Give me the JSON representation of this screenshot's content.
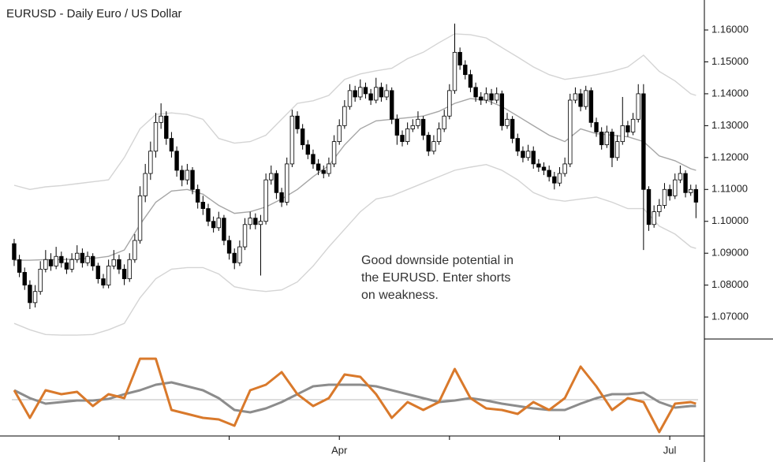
{
  "chart_data": [
    {
      "type": "candlestick",
      "title": "EURUSD - Daily  Euro / US Dollar",
      "annotation": [
        "Good downside potential in",
        "the EURUSD. Enter shorts",
        "on weakness."
      ],
      "xlim": [
        -2.7,
        131.6
      ],
      "ylim": [
        1.0631,
        1.1694
      ],
      "yticks": [
        {
          "value": 1.07,
          "label": "1.07000"
        },
        {
          "value": 1.08,
          "label": "1.08000"
        },
        {
          "value": 1.09,
          "label": "1.09000"
        },
        {
          "value": 1.1,
          "label": "1.10000"
        },
        {
          "value": 1.11,
          "label": "1.11000"
        },
        {
          "value": 1.12,
          "label": "1.12000"
        },
        {
          "value": 1.13,
          "label": "1.13000"
        },
        {
          "value": 1.14,
          "label": "1.14000"
        },
        {
          "value": 1.15,
          "label": "1.15000"
        },
        {
          "value": 1.16,
          "label": "1.16000"
        }
      ],
      "xticks": [
        {
          "value": 20,
          "label": null
        },
        {
          "value": 41,
          "label": null
        },
        {
          "value": 62,
          "label": "Apr"
        },
        {
          "value": 83,
          "label": null
        },
        {
          "value": 104,
          "label": null
        },
        {
          "value": 125,
          "label": "Jul"
        }
      ],
      "up_color": "#ffffff",
      "down_color": "#000000",
      "ohlc": [
        [
          1.093,
          1.0945,
          1.086,
          1.088
        ],
        [
          1.088,
          1.0895,
          1.0825,
          1.084
        ],
        [
          1.084,
          1.0855,
          1.0785,
          1.08
        ],
        [
          1.08,
          1.0815,
          1.0725,
          1.0745
        ],
        [
          1.0745,
          1.08,
          1.073,
          1.078
        ],
        [
          1.078,
          1.0875,
          1.077,
          1.085
        ],
        [
          1.085,
          1.091,
          1.084,
          1.088
        ],
        [
          1.088,
          1.09,
          1.0845,
          1.086
        ],
        [
          1.086,
          1.092,
          1.085,
          1.089
        ],
        [
          1.089,
          1.0905,
          1.0855,
          1.087
        ],
        [
          1.087,
          1.0885,
          1.0835,
          1.085
        ],
        [
          1.085,
          1.09,
          1.084,
          1.088
        ],
        [
          1.088,
          1.0925,
          1.087,
          1.09
        ],
        [
          1.09,
          1.0915,
          1.0855,
          1.087
        ],
        [
          1.087,
          1.0905,
          1.086,
          1.089
        ],
        [
          1.089,
          1.09,
          1.0845,
          1.086
        ],
        [
          1.086,
          1.087,
          1.0805,
          1.082
        ],
        [
          1.082,
          1.0835,
          1.079,
          1.08
        ],
        [
          1.08,
          1.088,
          1.079,
          1.086
        ],
        [
          1.086,
          1.091,
          1.085,
          1.088
        ],
        [
          1.088,
          1.0895,
          1.0835,
          1.085
        ],
        [
          1.085,
          1.0865,
          1.08,
          1.082
        ],
        [
          1.082,
          1.09,
          1.081,
          1.088
        ],
        [
          1.088,
          1.096,
          1.087,
          1.094
        ],
        [
          1.094,
          1.111,
          1.093,
          1.108
        ],
        [
          1.108,
          1.118,
          1.106,
          1.115
        ],
        [
          1.115,
          1.125,
          1.113,
          1.122
        ],
        [
          1.122,
          1.134,
          1.12,
          1.131
        ],
        [
          1.131,
          1.137,
          1.129,
          1.133
        ],
        [
          1.133,
          1.1345,
          1.124,
          1.126
        ],
        [
          1.126,
          1.128,
          1.12,
          1.122
        ],
        [
          1.122,
          1.1235,
          1.114,
          1.116
        ],
        [
          1.116,
          1.1175,
          1.111,
          1.113
        ],
        [
          1.113,
          1.118,
          1.1115,
          1.116
        ],
        [
          1.116,
          1.117,
          1.1085,
          1.11
        ],
        [
          1.11,
          1.1115,
          1.104,
          1.106
        ],
        [
          1.106,
          1.108,
          1.102,
          1.104
        ],
        [
          1.104,
          1.1055,
          1.0985,
          1.1
        ],
        [
          1.1,
          1.1015,
          1.0965,
          1.098
        ],
        [
          1.098,
          1.103,
          1.097,
          1.101
        ],
        [
          1.101,
          1.102,
          1.0925,
          1.094
        ],
        [
          1.094,
          1.0955,
          1.088,
          1.09
        ],
        [
          1.09,
          1.0915,
          1.085,
          1.087
        ],
        [
          1.087,
          1.094,
          1.086,
          1.092
        ],
        [
          1.092,
          1.101,
          1.091,
          1.099
        ],
        [
          1.099,
          1.103,
          1.0975,
          1.101
        ],
        [
          1.101,
          1.1025,
          1.0975,
          1.099
        ],
        [
          1.099,
          1.102,
          1.083,
          1.1
        ],
        [
          1.1,
          1.115,
          1.099,
          1.113
        ],
        [
          1.113,
          1.1175,
          1.1115,
          1.115
        ],
        [
          1.115,
          1.116,
          1.107,
          1.109
        ],
        [
          1.109,
          1.1105,
          1.1045,
          1.106
        ],
        [
          1.106,
          1.12,
          1.105,
          1.118
        ],
        [
          1.118,
          1.135,
          1.117,
          1.133
        ],
        [
          1.133,
          1.1345,
          1.1275,
          1.129
        ],
        [
          1.129,
          1.1305,
          1.1225,
          1.124
        ],
        [
          1.124,
          1.1255,
          1.1195,
          1.121
        ],
        [
          1.121,
          1.1225,
          1.1165,
          1.118
        ],
        [
          1.118,
          1.1195,
          1.1145,
          1.116
        ],
        [
          1.116,
          1.1175,
          1.1135,
          1.115
        ],
        [
          1.115,
          1.12,
          1.114,
          1.118
        ],
        [
          1.118,
          1.127,
          1.117,
          1.125
        ],
        [
          1.125,
          1.132,
          1.124,
          1.13
        ],
        [
          1.13,
          1.138,
          1.129,
          1.136
        ],
        [
          1.136,
          1.143,
          1.135,
          1.141
        ],
        [
          1.141,
          1.1425,
          1.1375,
          1.139
        ],
        [
          1.139,
          1.1445,
          1.138,
          1.142
        ],
        [
          1.142,
          1.1435,
          1.1385,
          1.14
        ],
        [
          1.14,
          1.1415,
          1.1365,
          1.138
        ],
        [
          1.138,
          1.145,
          1.137,
          1.142
        ],
        [
          1.142,
          1.1435,
          1.1375,
          1.139
        ],
        [
          1.139,
          1.143,
          1.138,
          1.141
        ],
        [
          1.141,
          1.142,
          1.1305,
          1.132
        ],
        [
          1.132,
          1.1335,
          1.124,
          1.127
        ],
        [
          1.127,
          1.1285,
          1.1235,
          1.125
        ],
        [
          1.125,
          1.131,
          1.124,
          1.129
        ],
        [
          1.129,
          1.132,
          1.128,
          1.13
        ],
        [
          1.13,
          1.1345,
          1.129,
          1.132
        ],
        [
          1.132,
          1.133,
          1.1255,
          1.127
        ],
        [
          1.127,
          1.128,
          1.1205,
          1.122
        ],
        [
          1.122,
          1.127,
          1.121,
          1.125
        ],
        [
          1.125,
          1.131,
          1.124,
          1.129
        ],
        [
          1.129,
          1.135,
          1.128,
          1.133
        ],
        [
          1.133,
          1.143,
          1.132,
          1.141
        ],
        [
          1.141,
          1.162,
          1.14,
          1.153
        ],
        [
          1.153,
          1.1545,
          1.1475,
          1.149
        ],
        [
          1.149,
          1.1505,
          1.1445,
          1.146
        ],
        [
          1.146,
          1.1475,
          1.1405,
          1.142
        ],
        [
          1.142,
          1.1435,
          1.1375,
          1.139
        ],
        [
          1.139,
          1.1405,
          1.1365,
          1.138
        ],
        [
          1.138,
          1.142,
          1.137,
          1.14
        ],
        [
          1.14,
          1.1415,
          1.1365,
          1.138
        ],
        [
          1.138,
          1.142,
          1.137,
          1.14
        ],
        [
          1.14,
          1.141,
          1.1285,
          1.13
        ],
        [
          1.13,
          1.134,
          1.129,
          1.132
        ],
        [
          1.132,
          1.133,
          1.1245,
          1.126
        ],
        [
          1.126,
          1.1275,
          1.1205,
          1.122
        ],
        [
          1.122,
          1.1235,
          1.1185,
          1.12
        ],
        [
          1.12,
          1.124,
          1.119,
          1.122
        ],
        [
          1.122,
          1.1235,
          1.1165,
          1.118
        ],
        [
          1.118,
          1.1195,
          1.1155,
          1.117
        ],
        [
          1.117,
          1.1185,
          1.1145,
          1.116
        ],
        [
          1.116,
          1.1175,
          1.1125,
          1.114
        ],
        [
          1.114,
          1.1155,
          1.11,
          1.112
        ],
        [
          1.112,
          1.117,
          1.111,
          1.115
        ],
        [
          1.115,
          1.12,
          1.114,
          1.118
        ],
        [
          1.118,
          1.14,
          1.117,
          1.138
        ],
        [
          1.138,
          1.142,
          1.137,
          1.14
        ],
        [
          1.14,
          1.1415,
          1.1345,
          1.136
        ],
        [
          1.136,
          1.1425,
          1.135,
          1.141
        ],
        [
          1.141,
          1.142,
          1.1295,
          1.131
        ],
        [
          1.131,
          1.1325,
          1.1265,
          1.128
        ],
        [
          1.128,
          1.1295,
          1.1225,
          1.124
        ],
        [
          1.124,
          1.13,
          1.123,
          1.128
        ],
        [
          1.128,
          1.129,
          1.117,
          1.12
        ],
        [
          1.12,
          1.127,
          1.119,
          1.125
        ],
        [
          1.125,
          1.139,
          1.124,
          1.13
        ],
        [
          1.13,
          1.1315,
          1.1265,
          1.128
        ],
        [
          1.128,
          1.134,
          1.127,
          1.132
        ],
        [
          1.132,
          1.143,
          1.131,
          1.14
        ],
        [
          1.14,
          1.143,
          1.091,
          1.11
        ],
        [
          1.11,
          1.111,
          1.097,
          1.099
        ],
        [
          1.099,
          1.105,
          1.098,
          1.103
        ],
        [
          1.103,
          1.107,
          1.1015,
          1.105
        ],
        [
          1.105,
          1.112,
          1.104,
          1.11
        ],
        [
          1.11,
          1.1115,
          1.1065,
          1.108
        ],
        [
          1.108,
          1.115,
          1.107,
          1.113
        ],
        [
          1.113,
          1.1175,
          1.112,
          1.115
        ],
        [
          1.115,
          1.116,
          1.1075,
          1.109
        ],
        [
          1.109,
          1.1115,
          1.108,
          1.11
        ],
        [
          1.11,
          1.1115,
          1.101,
          1.106
        ]
      ],
      "bands": {
        "x": [
          0,
          3,
          6,
          9,
          12,
          15,
          18,
          21,
          24,
          27,
          30,
          33,
          36,
          39,
          42,
          45,
          48,
          51,
          54,
          57,
          60,
          63,
          66,
          69,
          72,
          75,
          78,
          81,
          84,
          87,
          90,
          93,
          96,
          99,
          102,
          105,
          108,
          111,
          114,
          117,
          120,
          123,
          126,
          129,
          130
        ],
        "series": [
          {
            "color": "#d4d4d4",
            "values": [
              1.1113,
              1.11,
              1.1108,
              1.1112,
              1.1118,
              1.1124,
              1.113,
              1.12,
              1.129,
              1.1335,
              1.134,
              1.1335,
              1.132,
              1.126,
              1.1245,
              1.125,
              1.127,
              1.132,
              1.137,
              1.1378,
              1.1395,
              1.1445,
              1.1462,
              1.1472,
              1.148,
              1.151,
              1.153,
              1.156,
              1.1588,
              1.1585,
              1.1575,
              1.1545,
              1.1515,
              1.1484,
              1.146,
              1.1445,
              1.1452,
              1.146,
              1.147,
              1.1484,
              1.1521,
              1.147,
              1.144,
              1.14,
              1.1395
            ]
          },
          {
            "color": "#a6a6a6",
            "values": [
              1.0878,
              1.0878,
              1.088,
              1.088,
              1.0882,
              1.0884,
              1.089,
              1.091,
              1.099,
              1.106,
              1.1095,
              1.11,
              1.1085,
              1.105,
              1.1025,
              1.103,
              1.1045,
              1.107,
              1.11,
              1.114,
              1.1175,
              1.124,
              1.129,
              1.1315,
              1.132,
              1.1325,
              1.133,
              1.1345,
              1.137,
              1.1385,
              1.138,
              1.136,
              1.133,
              1.13,
              1.127,
              1.125,
              1.129,
              1.1275,
              1.127,
              1.1265,
              1.125,
              1.1205,
              1.119,
              1.1165,
              1.116
            ]
          },
          {
            "color": "#d4d4d4",
            "values": [
              1.068,
              1.066,
              1.0645,
              1.0643,
              1.0643,
              1.0645,
              1.066,
              1.068,
              1.076,
              1.082,
              1.085,
              1.0855,
              1.0855,
              1.0835,
              1.0795,
              1.0785,
              1.078,
              1.0785,
              1.081,
              1.086,
              1.092,
              1.0975,
              1.103,
              1.107,
              1.108,
              1.11,
              1.112,
              1.114,
              1.116,
              1.117,
              1.1178,
              1.116,
              1.113,
              1.109,
              1.107,
              1.1063,
              1.107,
              1.1076,
              1.106,
              1.104,
              1.104,
              1.0985,
              1.096,
              1.092,
              1.0915
            ]
          }
        ]
      }
    },
    {
      "type": "line",
      "xlim": [
        -2.7,
        131.6
      ],
      "ylim": [
        -48,
        77
      ],
      "reference_line": 0,
      "x": [
        0,
        3,
        6,
        9,
        12,
        15,
        18,
        21,
        24,
        27,
        30,
        33,
        36,
        39,
        42,
        45,
        48,
        51,
        54,
        57,
        60,
        63,
        66,
        69,
        72,
        75,
        78,
        81,
        84,
        87,
        90,
        93,
        96,
        99,
        102,
        105,
        108,
        111,
        114,
        117,
        120,
        123,
        126,
        129,
        130
      ],
      "series": [
        {
          "color": "#8c8c8c",
          "values": [
            12,
            2,
            -5,
            -3,
            -1,
            -1,
            1,
            7,
            12,
            19,
            22,
            17,
            12,
            2,
            -13,
            -16,
            -11,
            -3,
            7,
            17,
            19,
            19,
            19,
            17,
            12,
            7,
            2,
            -3,
            -1,
            2,
            -1,
            -5,
            -8,
            -11,
            -13,
            -13,
            -5,
            2,
            7,
            7,
            9,
            -3,
            -10,
            -8,
            -8
          ]
        },
        {
          "color": "#d9792b",
          "values": [
            12,
            -23,
            12,
            7,
            10,
            -8,
            7,
            2,
            52,
            52,
            -13,
            -18,
            -23,
            -25,
            -33,
            12,
            19,
            35,
            7,
            -8,
            2,
            32,
            29,
            7,
            -23,
            -3,
            -13,
            -3,
            39,
            2,
            -11,
            -13,
            -18,
            -3,
            -13,
            2,
            42,
            17,
            -13,
            2,
            -3,
            -41,
            -5,
            -3,
            -5
          ]
        }
      ]
    }
  ]
}
